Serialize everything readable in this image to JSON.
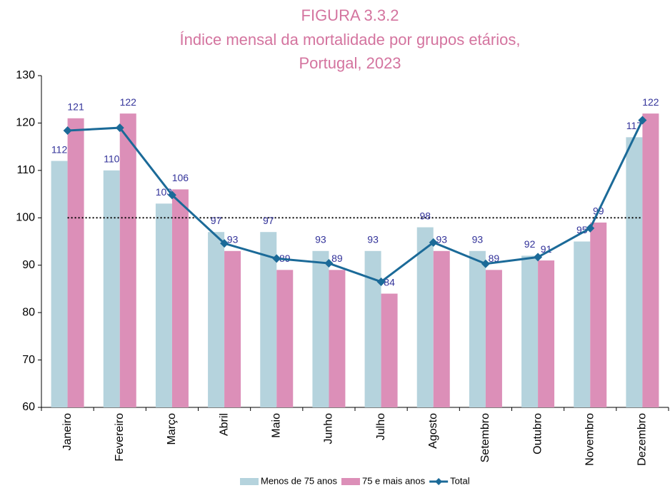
{
  "chart_data": {
    "type": "bar_line",
    "title": [
      "FIGURA 3.3.2",
      "Índice mensal da mortalidade por grupos etários,",
      "Portugal, 2023"
    ],
    "categories": [
      "Janeiro",
      "Fevereiro",
      "Março",
      "Abril",
      "Maio",
      "Junho",
      "Julho",
      "Agosto",
      "Setembro",
      "Outubro",
      "Novembro",
      "Dezembro"
    ],
    "series": [
      {
        "name": "Menos de 75 anos",
        "color": "#b5d3dd",
        "kind": "bar",
        "values": [
          112,
          110,
          103,
          97,
          97,
          93,
          93,
          98,
          93,
          92,
          95,
          117
        ]
      },
      {
        "name": "75 e mais anos",
        "color": "#dc8fb8",
        "kind": "bar",
        "values": [
          121,
          122,
          106,
          93,
          89,
          89,
          84,
          93,
          89,
          91,
          99,
          122
        ]
      },
      {
        "name": "Total",
        "color": "#1b6a98",
        "kind": "line",
        "values": [
          118.4,
          119,
          104.8,
          94.6,
          91.4,
          90.4,
          86.5,
          94.8,
          90.3,
          91.7,
          97.8,
          120.6
        ]
      }
    ],
    "reference_line": 100,
    "ylim": [
      60,
      130
    ],
    "yticks": [
      60,
      70,
      80,
      90,
      100,
      110,
      120,
      130
    ],
    "grid": false
  }
}
